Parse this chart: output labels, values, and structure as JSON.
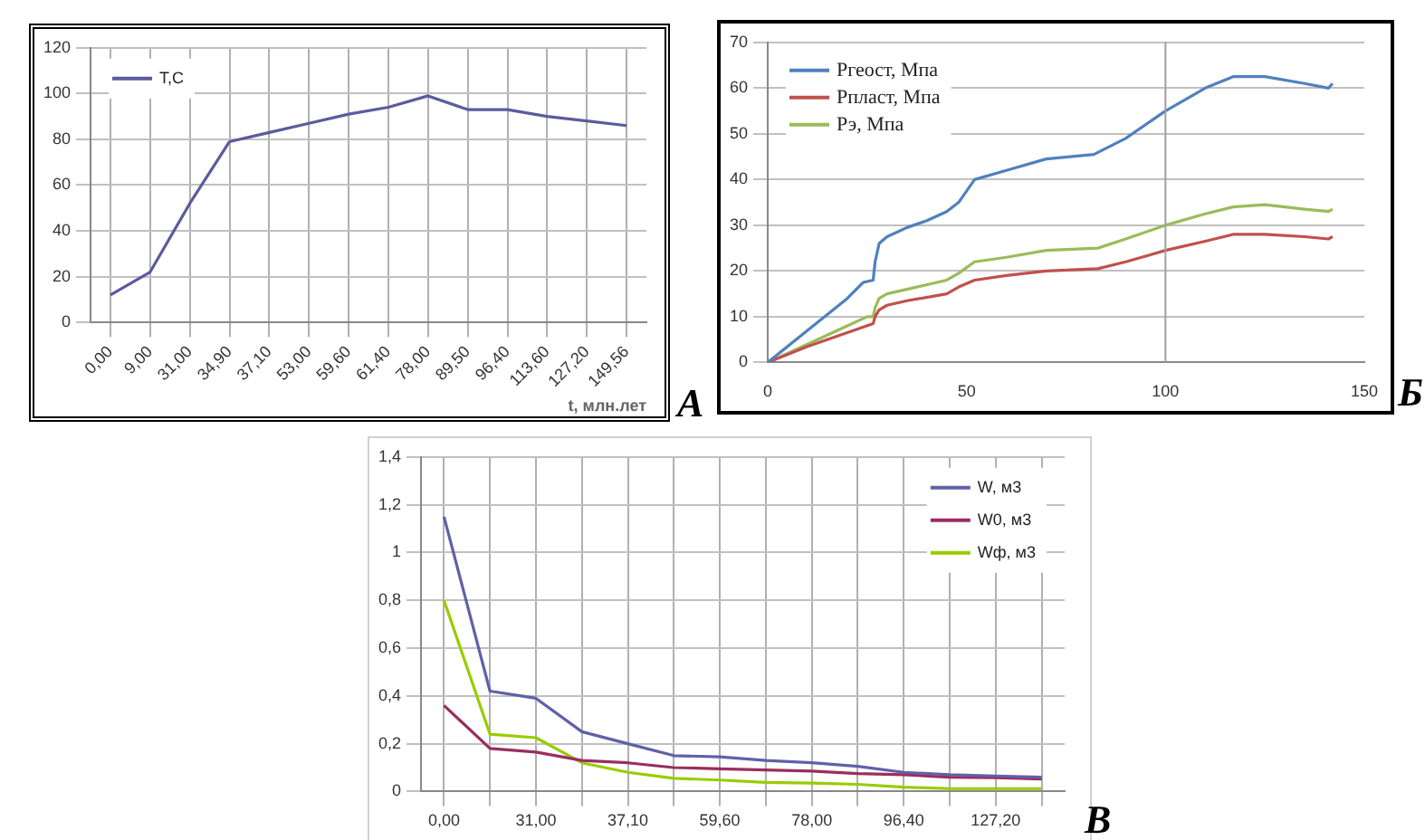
{
  "chart_data": [
    {
      "type": "line",
      "xlabel": "t, млн.лет",
      "annotations": [
        "A"
      ],
      "categories": [
        "0,00",
        "9,00",
        "31,00",
        "34,90",
        "37,10",
        "53,00",
        "59,60",
        "61,40",
        "78,00",
        "89,50",
        "96,40",
        "113,60",
        "127,20",
        "149,56"
      ],
      "series": [
        {
          "name": "T,C",
          "color": "#5b5b9e",
          "values": [
            12,
            22,
            52,
            79,
            83,
            87,
            91,
            94,
            99,
            93,
            93,
            90,
            88,
            86
          ]
        }
      ],
      "ylim": [
        0,
        120
      ],
      "yticks": [
        0,
        20,
        40,
        60,
        80,
        100,
        120
      ],
      "grid": true,
      "legend": "top left",
      "marker": "none",
      "line_style": "solid"
    },
    {
      "type": "line",
      "annotations": [
        "Б"
      ],
      "series": [
        {
          "name": "Ргеост, Мпа",
          "color": "#4f81bd",
          "x": [
            0,
            10,
            20,
            24,
            26.5,
            27,
            28,
            30,
            35,
            40,
            45,
            48,
            52,
            60,
            70,
            82,
            90,
            100,
            110,
            117,
            125,
            135,
            141,
            142
          ],
          "values": [
            0,
            7,
            14,
            17.5,
            18,
            22,
            26,
            27.5,
            29.5,
            31,
            33,
            35,
            40,
            42,
            44.5,
            45.5,
            49,
            55,
            60,
            62.5,
            62.5,
            61,
            60,
            61
          ]
        },
        {
          "name": "Рпласт, Мпа",
          "color": "#c0504d",
          "x": [
            0,
            10,
            20,
            26.5,
            27,
            28,
            30,
            35,
            45,
            48,
            52,
            60,
            70,
            83,
            90,
            100,
            110,
            117,
            125,
            135,
            141,
            142
          ],
          "values": [
            0,
            3.5,
            6.5,
            8.5,
            10,
            11.5,
            12.5,
            13.5,
            15,
            16.5,
            18,
            19,
            20,
            20.5,
            22,
            24.5,
            26.5,
            28,
            28,
            27.5,
            27,
            27.5
          ]
        },
        {
          "name": "Рэ, Мпа",
          "color": "#9bbb59",
          "x": [
            0,
            10,
            20,
            25,
            26.5,
            27,
            28,
            30,
            35,
            45,
            48,
            52,
            60,
            70,
            83,
            90,
            100,
            110,
            117,
            125,
            135,
            141,
            142
          ],
          "values": [
            0,
            4,
            8,
            10,
            10,
            12,
            14,
            15,
            16,
            18,
            19.5,
            22,
            23,
            24.5,
            25,
            27,
            30,
            32.5,
            34,
            34.5,
            33.5,
            33,
            33.5
          ]
        }
      ],
      "xlim": [
        0,
        150
      ],
      "xticks": [
        0,
        50,
        100,
        150
      ],
      "ylim": [
        0,
        70
      ],
      "yticks": [
        0,
        10,
        20,
        30,
        40,
        50,
        60,
        70
      ],
      "grid": "y",
      "ref_lines": [
        {
          "axis": "x",
          "value": 100,
          "color": "#a0a0a0"
        }
      ],
      "legend": "top left",
      "marker": "none",
      "line_style": "solid"
    },
    {
      "type": "line",
      "annotations": [
        "В"
      ],
      "categories": [
        "0,00",
        null,
        "31,00",
        null,
        "37,10",
        null,
        "59,60",
        null,
        "78,00",
        null,
        "96,40",
        null,
        "127,20",
        null
      ],
      "series": [
        {
          "name": "W, м3",
          "color": "#6060a8",
          "values": [
            1.15,
            0.42,
            0.39,
            0.25,
            0.2,
            0.15,
            0.145,
            0.13,
            0.12,
            0.105,
            0.08,
            0.07,
            0.065,
            0.06
          ]
        },
        {
          "name": "W0, м3",
          "color": "#9b2d5f",
          "values": [
            0.36,
            0.18,
            0.165,
            0.13,
            0.12,
            0.1,
            0.095,
            0.09,
            0.085,
            0.075,
            0.07,
            0.06,
            0.058,
            0.052
          ]
        },
        {
          "name": "Wф, м3",
          "color": "#99cc00",
          "values": [
            0.8,
            0.24,
            0.225,
            0.12,
            0.08,
            0.055,
            0.048,
            0.038,
            0.035,
            0.03,
            0.018,
            0.012,
            0.012,
            0.012
          ]
        }
      ],
      "ylim": [
        0,
        1.4
      ],
      "yticks": [
        {
          "value": 0,
          "label": "0"
        },
        {
          "value": 0.2,
          "label": "0,2"
        },
        {
          "value": 0.4,
          "label": "0,4"
        },
        {
          "value": 0.6,
          "label": "0,6"
        },
        {
          "value": 0.8,
          "label": "0,8"
        },
        {
          "value": 1,
          "label": "1"
        },
        {
          "value": 1.2,
          "label": "1,2"
        },
        {
          "value": 1.4,
          "label": "1,4"
        }
      ],
      "grid": true,
      "legend": "top right",
      "marker": "none",
      "line_style": "solid"
    }
  ]
}
